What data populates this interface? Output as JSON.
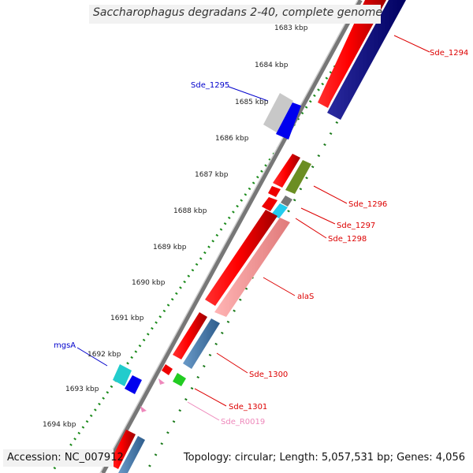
{
  "title": "Saccharophagus degradans 2-40, complete genome",
  "footer": {
    "accession": "Accession: NC_007912",
    "topology": "Topology: circular; Length: 5,057,531 bp; Genes: 4,056"
  },
  "ticks": [
    "1683 kbp",
    "1684 kbp",
    "1685 kbp",
    "1686 kbp",
    "1687 kbp",
    "1688 kbp",
    "1689 kbp",
    "1690 kbp",
    "1691 kbp",
    "1692 kbp",
    "1693 kbp",
    "1694 kbp"
  ],
  "labels": [
    {
      "name": "Sde_1294",
      "color": "#dd0000"
    },
    {
      "name": "Sde_1295",
      "color": "#0000cc"
    },
    {
      "name": "Sde_1296",
      "color": "#dd0000"
    },
    {
      "name": "Sde_1297",
      "color": "#dd0000"
    },
    {
      "name": "Sde_1298",
      "color": "#dd0000"
    },
    {
      "name": "alaS",
      "color": "#dd0000"
    },
    {
      "name": "Sde_1300",
      "color": "#dd0000"
    },
    {
      "name": "Sde_1301",
      "color": "#dd0000"
    },
    {
      "name": "Sde_R0019",
      "color": "#ee88bb"
    },
    {
      "name": "mgsA",
      "color": "#0000cc"
    }
  ]
}
